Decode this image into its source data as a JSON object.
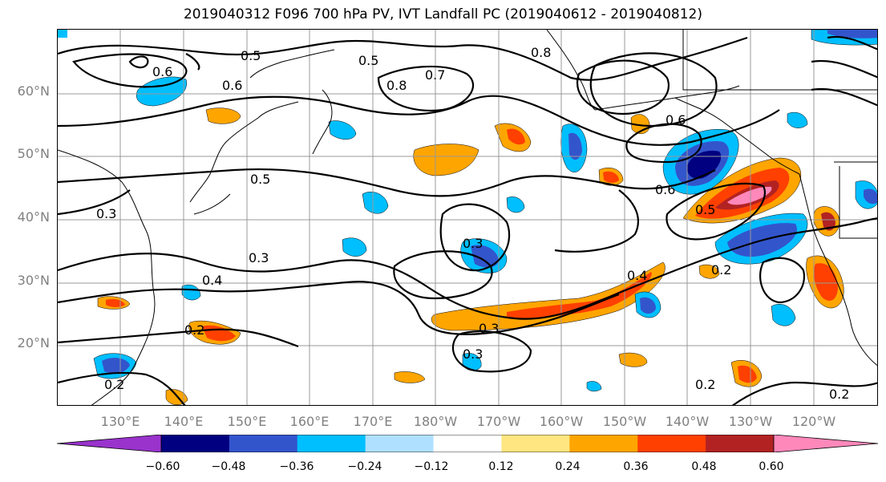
{
  "title": "2019040312 F096 700 hPa PV, IVT Landfall PC (2019040612 - 2019040812)",
  "map": {
    "lat_labels": [
      "60°N",
      "50°N",
      "40°N",
      "30°N",
      "20°N"
    ],
    "lon_labels": [
      "130°E",
      "140°E",
      "150°E",
      "160°E",
      "170°E",
      "180°W",
      "170°W",
      "160°W",
      "150°W",
      "140°W",
      "130°W",
      "120°W"
    ],
    "contour_labels": [
      "0.5",
      "0.5",
      "0.6",
      "0.6",
      "0.8",
      "0.7",
      "0.8",
      "0.6",
      "0.6",
      "0.5",
      "0.5",
      "0.3",
      "0.3",
      "0.3",
      "0.4",
      "0.2",
      "0.3",
      "0.3",
      "0.4",
      "0.2",
      "0.2",
      "0.2",
      "0.2"
    ]
  },
  "colorbar": {
    "ticks": [
      "−0.60",
      "−0.48",
      "−0.36",
      "−0.24",
      "−0.12",
      "0.12",
      "0.24",
      "0.36",
      "0.48",
      "0.60"
    ],
    "colors": [
      "#9933cc",
      "#000080",
      "#3355cc",
      "#00bfff",
      "#b0e0ff",
      "#ffffff",
      "#ffe680",
      "#ffa500",
      "#ff4000",
      "#b22222",
      "#ff88bb"
    ]
  }
}
